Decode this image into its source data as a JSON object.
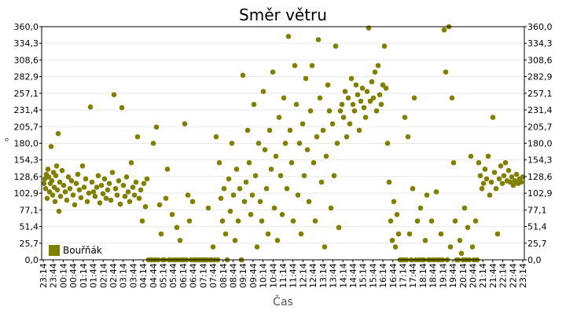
{
  "chart_data": {
    "type": "scatter",
    "title": "Směr větru",
    "xlabel": "Čas",
    "ylabel": "°",
    "ylim": [
      0,
      360
    ],
    "y_ticks": [
      "0,0",
      "25,7",
      "51,4",
      "77,1",
      "102,9",
      "128,6",
      "154,3",
      "180,0",
      "205,7",
      "231,4",
      "257,1",
      "282,9",
      "308,6",
      "334,3",
      "360,0"
    ],
    "x_ticks": [
      "23:14",
      "23:44",
      "00:14",
      "00:44",
      "01:14",
      "01:44",
      "02:14",
      "02:44",
      "03:14",
      "03:44",
      "04:14",
      "04:44",
      "05:14",
      "05:44",
      "06:14",
      "06:44",
      "07:14",
      "07:44",
      "08:14",
      "08:44",
      "09:14",
      "09:44",
      "10:14",
      "10:44",
      "11:14",
      "11:44",
      "12:14",
      "12:44",
      "13:14",
      "13:44",
      "14:14",
      "14:44",
      "15:14",
      "15:44",
      "16:14",
      "16:44",
      "17:14",
      "17:44",
      "18:14",
      "18:44",
      "19:14",
      "19:44",
      "20:14",
      "20:44",
      "21:14",
      "21:44",
      "22:14",
      "22:44",
      "23:14"
    ],
    "grid": true,
    "legend_position": "bottom-left",
    "colors": {
      "series": "#808000",
      "grid": "#e8e8e8",
      "axis": "#000000"
    },
    "series": [
      {
        "name": "Bouřňák",
        "note_values": "x in hours since 23:14, y in degrees",
        "points": [
          [
            0.05,
            118
          ],
          [
            0.1,
            125
          ],
          [
            0.15,
            110
          ],
          [
            0.2,
            132
          ],
          [
            0.25,
            95
          ],
          [
            0.3,
            140
          ],
          [
            0.35,
            128
          ],
          [
            0.4,
            105
          ],
          [
            0.45,
            118
          ],
          [
            0.5,
            175
          ],
          [
            0.55,
            122
          ],
          [
            0.6,
            100
          ],
          [
            0.65,
            135
          ],
          [
            0.7,
            112
          ],
          [
            0.75,
            90
          ],
          [
            0.8,
            130
          ],
          [
            0.85,
            145
          ],
          [
            0.9,
            108
          ],
          [
            0.95,
            195
          ],
          [
            1.0,
            75
          ],
          [
            1.05,
            120
          ],
          [
            1.1,
            98
          ],
          [
            1.2,
            138
          ],
          [
            1.3,
            115
          ],
          [
            1.4,
            105
          ],
          [
            1.5,
            92
          ],
          [
            1.6,
            128
          ],
          [
            1.7,
            110
          ],
          [
            1.8,
            122
          ],
          [
            1.9,
            100
          ],
          [
            2.0,
            85
          ],
          [
            2.1,
            118
          ],
          [
            2.2,
            132
          ],
          [
            2.3,
            108
          ],
          [
            2.4,
            96
          ],
          [
            2.5,
            145
          ],
          [
            2.6,
            112
          ],
          [
            2.7,
            125
          ],
          [
            2.8,
            90
          ],
          [
            2.9,
            103
          ],
          [
            3.0,
            236
          ],
          [
            3.1,
            120
          ],
          [
            3.2,
            105
          ],
          [
            3.3,
            98
          ],
          [
            3.4,
            112
          ],
          [
            3.5,
            130
          ],
          [
            3.6,
            88
          ],
          [
            3.7,
            115
          ],
          [
            3.8,
            102
          ],
          [
            3.9,
            125
          ],
          [
            4.0,
            95
          ],
          [
            4.1,
            108
          ],
          [
            4.2,
            118
          ],
          [
            4.3,
            92
          ],
          [
            4.4,
            135
          ],
          [
            4.5,
            255
          ],
          [
            4.6,
            110
          ],
          [
            4.7,
            100
          ],
          [
            4.8,
            122
          ],
          [
            4.9,
            86
          ],
          [
            5.0,
            235
          ],
          [
            5.1,
            115
          ],
          [
            5.2,
            98
          ],
          [
            5.3,
            128
          ],
          [
            5.4,
            105
          ],
          [
            5.5,
            90
          ],
          [
            5.6,
            150
          ],
          [
            5.7,
            112
          ],
          [
            5.8,
            100
          ],
          [
            5.9,
            120
          ],
          [
            6.0,
            190
          ],
          [
            6.1,
            95
          ],
          [
            6.2,
            108
          ],
          [
            6.3,
            60
          ],
          [
            6.4,
            118
          ],
          [
            6.5,
            82
          ],
          [
            6.6,
            125
          ],
          [
            6.7,
            0
          ],
          [
            6.8,
            0
          ],
          [
            6.9,
            0
          ],
          [
            7.0,
            180
          ],
          [
            7.1,
            0
          ],
          [
            7.2,
            205
          ],
          [
            7.3,
            0
          ],
          [
            7.4,
            85
          ],
          [
            7.5,
            40
          ],
          [
            7.6,
            0
          ],
          [
            7.7,
            0
          ],
          [
            7.8,
            95
          ],
          [
            7.9,
            140
          ],
          [
            8.0,
            0
          ],
          [
            8.1,
            0
          ],
          [
            8.2,
            70
          ],
          [
            8.3,
            0
          ],
          [
            8.4,
            0
          ],
          [
            8.5,
            50
          ],
          [
            8.6,
            0
          ],
          [
            8.7,
            30
          ],
          [
            8.8,
            0
          ],
          [
            8.9,
            0
          ],
          [
            9.0,
            210
          ],
          [
            9.1,
            0
          ],
          [
            9.2,
            100
          ],
          [
            9.3,
            60
          ],
          [
            9.4,
            0
          ],
          [
            9.5,
            90
          ],
          [
            9.6,
            0
          ],
          [
            9.7,
            0
          ],
          [
            9.8,
            0
          ],
          [
            9.9,
            0
          ],
          [
            10.0,
            0
          ],
          [
            10.1,
            0
          ],
          [
            10.2,
            0
          ],
          [
            10.3,
            0
          ],
          [
            10.4,
            0
          ],
          [
            10.5,
            80
          ],
          [
            10.6,
            0
          ],
          [
            10.7,
            0
          ],
          [
            10.8,
            20
          ],
          [
            10.9,
            0
          ],
          [
            11.0,
            190
          ],
          [
            11.1,
            0
          ],
          [
            11.2,
            150
          ],
          [
            11.3,
            95
          ],
          [
            11.4,
            60
          ],
          [
            11.5,
            110
          ],
          [
            11.6,
            40
          ],
          [
            11.7,
            0
          ],
          [
            11.8,
            125
          ],
          [
            11.9,
            75
          ],
          [
            12.0,
            180
          ],
          [
            12.1,
            100
          ],
          [
            12.2,
            30
          ],
          [
            12.3,
            140
          ],
          [
            12.4,
            60
          ],
          [
            12.5,
            110
          ],
          [
            12.6,
            0
          ],
          [
            12.7,
            285
          ],
          [
            12.8,
            90
          ],
          [
            12.9,
            120
          ],
          [
            13.0,
            200
          ],
          [
            13.1,
            150
          ],
          [
            13.2,
            70
          ],
          [
            13.3,
            100
          ],
          [
            13.4,
            240
          ],
          [
            13.5,
            130
          ],
          [
            13.6,
            20
          ],
          [
            13.7,
            180
          ],
          [
            13.8,
            90
          ],
          [
            13.9,
            60
          ],
          [
            14.0,
            260
          ],
          [
            14.1,
            170
          ],
          [
            14.2,
            110
          ],
          [
            14.3,
            40
          ],
          [
            14.4,
            200
          ],
          [
            14.5,
            140
          ],
          [
            14.6,
            290
          ],
          [
            14.7,
            80
          ],
          [
            14.8,
            160
          ],
          [
            14.9,
            30
          ],
          [
            15.0,
            220
          ],
          [
            15.1,
            130
          ],
          [
            15.2,
            70
          ],
          [
            15.3,
            250
          ],
          [
            15.4,
            180
          ],
          [
            15.5,
            110
          ],
          [
            15.6,
            345
          ],
          [
            15.7,
            200
          ],
          [
            15.8,
            150
          ],
          [
            15.9,
            60
          ],
          [
            16.0,
            300
          ],
          [
            16.1,
            240
          ],
          [
            16.2,
            100
          ],
          [
            16.3,
            180
          ],
          [
            16.4,
            40
          ],
          [
            16.5,
            210
          ],
          [
            16.6,
            130
          ],
          [
            16.7,
            280
          ],
          [
            16.8,
            170
          ],
          [
            16.9,
            90
          ],
          [
            17.0,
            230
          ],
          [
            17.1,
            300
          ],
          [
            17.2,
            150
          ],
          [
            17.3,
            60
          ],
          [
            17.4,
            190
          ],
          [
            17.5,
            340
          ],
          [
            17.6,
            250
          ],
          [
            17.7,
            120
          ],
          [
            17.8,
            200
          ],
          [
            17.9,
            20
          ],
          [
            18.0,
            160
          ],
          [
            18.1,
            270
          ],
          [
            18.2,
            230
          ],
          [
            18.3,
            80
          ],
          [
            18.4,
            210
          ],
          [
            18.5,
            130
          ],
          [
            18.6,
            330
          ],
          [
            18.7,
            180
          ],
          [
            18.8,
            50
          ],
          [
            18.9,
            230
          ],
          [
            19.0,
            240
          ],
          [
            19.1,
            220
          ],
          [
            19.2,
            260
          ],
          [
            19.3,
            190
          ],
          [
            19.4,
            250
          ],
          [
            19.5,
            210
          ],
          [
            19.6,
            280
          ],
          [
            19.7,
            240
          ],
          [
            19.8,
            230
          ],
          [
            19.9,
            270
          ],
          [
            20.0,
            255
          ],
          [
            20.1,
            200
          ],
          [
            20.2,
            245
          ],
          [
            20.3,
            265
          ],
          [
            20.4,
            235
          ],
          [
            20.5,
            220
          ],
          [
            20.6,
            260
          ],
          [
            20.7,
            358
          ],
          [
            20.8,
            245
          ],
          [
            20.9,
            275
          ],
          [
            21.0,
            250
          ],
          [
            21.1,
            290
          ],
          [
            21.2,
            230
          ],
          [
            21.3,
            300
          ],
          [
            21.4,
            255
          ],
          [
            21.5,
            240
          ],
          [
            21.6,
            270
          ],
          [
            21.7,
            330
          ],
          [
            21.8,
            265
          ],
          [
            21.9,
            180
          ],
          [
            22.0,
            120
          ],
          [
            22.1,
            60
          ],
          [
            22.2,
            30
          ],
          [
            22.3,
            90
          ],
          [
            22.4,
            20
          ],
          [
            22.5,
            70
          ],
          [
            22.6,
            40
          ],
          [
            22.7,
            0
          ],
          [
            22.8,
            0
          ],
          [
            22.9,
            0
          ],
          [
            23.0,
            220
          ],
          [
            23.1,
            0
          ],
          [
            23.2,
            190
          ],
          [
            23.3,
            40
          ],
          [
            23.4,
            0
          ],
          [
            23.5,
            110
          ],
          [
            23.6,
            250
          ],
          [
            23.7,
            0
          ],
          [
            23.8,
            60
          ],
          [
            23.9,
            0
          ],
          [
            24.0,
            80
          ],
          [
            24.1,
            0
          ],
          [
            24.2,
            0
          ],
          [
            24.3,
            30
          ],
          [
            24.4,
            100
          ],
          [
            24.5,
            0
          ],
          [
            24.6,
            0
          ],
          [
            24.7,
            60
          ],
          [
            24.8,
            0
          ],
          [
            24.9,
            0
          ],
          [
            25.0,
            105
          ],
          [
            25.1,
            0
          ],
          [
            25.2,
            0
          ],
          [
            25.3,
            40
          ],
          [
            25.4,
            0
          ],
          [
            25.5,
            355
          ],
          [
            25.6,
            290
          ],
          [
            25.7,
            0
          ],
          [
            25.8,
            360
          ],
          [
            25.9,
            20
          ],
          [
            26.0,
            250
          ],
          [
            26.1,
            150
          ],
          [
            26.2,
            60
          ],
          [
            26.3,
            0
          ],
          [
            26.4,
            0
          ],
          [
            26.5,
            30
          ],
          [
            26.6,
            10
          ],
          [
            26.7,
            0
          ],
          [
            26.8,
            80
          ],
          [
            26.9,
            0
          ],
          [
            27.0,
            50
          ],
          [
            27.1,
            0
          ],
          [
            27.2,
            160
          ],
          [
            27.3,
            20
          ],
          [
            27.4,
            0
          ],
          [
            27.5,
            60
          ],
          [
            27.6,
            0
          ],
          [
            27.7,
            150
          ],
          [
            27.8,
            130
          ],
          [
            27.9,
            110
          ],
          [
            28.0,
            118
          ],
          [
            28.1,
            140
          ],
          [
            28.2,
            125
          ],
          [
            28.3,
            160
          ],
          [
            28.4,
            100
          ],
          [
            28.5,
            120
          ],
          [
            28.6,
            220
          ],
          [
            28.7,
            135
          ],
          [
            28.8,
            110
          ],
          [
            28.9,
            40
          ],
          [
            29.0,
            125
          ],
          [
            29.1,
            145
          ],
          [
            29.2,
            118
          ],
          [
            29.3,
            130
          ],
          [
            29.4,
            150
          ],
          [
            29.5,
            122
          ],
          [
            29.6,
            138
          ],
          [
            29.7,
            120
          ],
          [
            29.8,
            128
          ],
          [
            29.9,
            115
          ],
          [
            30.0,
            122
          ],
          [
            30.1,
            132
          ],
          [
            30.2,
            118
          ],
          [
            30.3,
            125
          ],
          [
            30.4,
            120
          ],
          [
            30.5,
            128
          ]
        ]
      }
    ]
  }
}
